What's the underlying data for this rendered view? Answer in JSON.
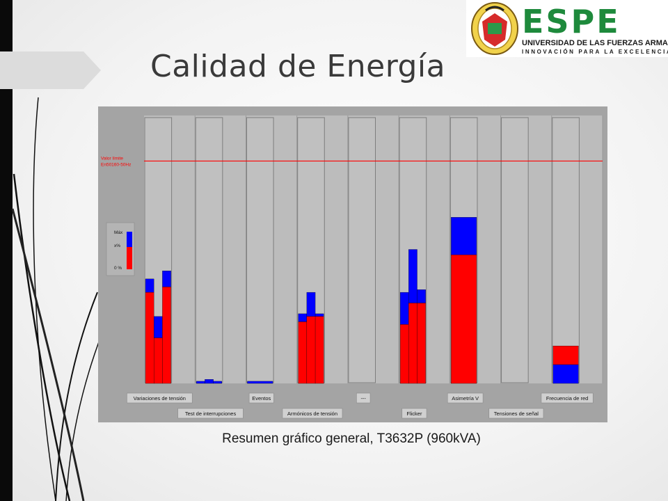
{
  "slide": {
    "title": "Calidad de Energía",
    "caption": "Resumen gráfico general, T3632P (960kVA)"
  },
  "logo": {
    "brand": "ESPE",
    "university": "UNIVERSIDAD DE LAS FUERZAS ARMADAS",
    "motto": "INNOVACIÓN PARA LA EXCELENCIA",
    "colors": {
      "brand_green": "#1e8a3c"
    }
  },
  "chart_data": {
    "type": "bar",
    "ylim": [
      0,
      100
    ],
    "limit_label_lines": [
      "Valor límite",
      "En50160-50Hz"
    ],
    "limit_value": 83,
    "legend": {
      "max_label": "Máx",
      "value_label": "x%",
      "zero_label": "0 %",
      "placement": "left"
    },
    "colors": {
      "value": "#ff0000",
      "max": "#0000ff",
      "limit_line": "#ff0000",
      "background": "#c0c0c0"
    },
    "categories": [
      {
        "label": "Variaciones de tensión",
        "bars": [
          {
            "value": 34,
            "max": 39
          },
          {
            "value": 17,
            "max": 25
          },
          {
            "value": 36,
            "max": 42
          }
        ]
      },
      {
        "label": "Test de interrupciones",
        "bars": [
          {
            "value": 0,
            "max": 0.8
          },
          {
            "value": 0,
            "max": 1.5
          },
          {
            "value": 0,
            "max": 0.8
          }
        ]
      },
      {
        "label": "Eventos",
        "bars": [
          {
            "value": 0,
            "max": 0.8
          }
        ]
      },
      {
        "label": "Armónicos de tensión",
        "bars": [
          {
            "value": 23,
            "max": 26
          },
          {
            "value": 25,
            "max": 34
          },
          {
            "value": 25,
            "max": 26
          }
        ]
      },
      {
        "label": "---",
        "bars": []
      },
      {
        "label": "Flicker",
        "bars": [
          {
            "value": 22,
            "max": 34
          },
          {
            "value": 30,
            "max": 50
          },
          {
            "value": 30,
            "max": 35
          }
        ]
      },
      {
        "label": "Asimetría V",
        "bars": [
          {
            "value": 48,
            "max": 62
          }
        ]
      },
      {
        "label": "Tensiones de señal",
        "bars": []
      },
      {
        "label": "Frecuencia de red",
        "bars": [
          {
            "value": 14,
            "max": 7
          }
        ]
      }
    ]
  }
}
